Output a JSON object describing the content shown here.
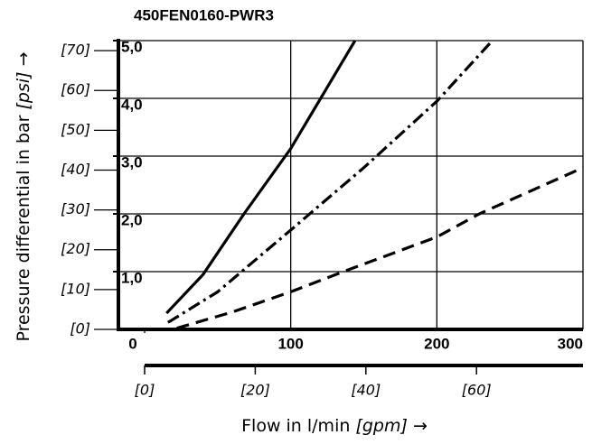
{
  "chart_data": {
    "type": "line",
    "title": "450FEN0160-PWR3",
    "x_label": {
      "text": "Flow in l/min",
      "unit": "[gpm]",
      "arrow": "→"
    },
    "y_label": {
      "text": "Pressure differential in bar",
      "unit": "[psi]",
      "arrow": "→"
    },
    "xlim": [
      0,
      300
    ],
    "xticks": [
      0,
      100,
      200,
      300
    ],
    "ylim": [
      0,
      5
    ],
    "yticks": [
      {
        "value": 1,
        "label": "1,0"
      },
      {
        "value": 2,
        "label": "2,0"
      },
      {
        "value": 3,
        "label": "3,0"
      },
      {
        "value": 4,
        "label": "4,0"
      },
      {
        "value": 5,
        "label": "5,0"
      }
    ],
    "y2lim": [
      0,
      72.52
    ],
    "y2ticks": [
      {
        "value": 0,
        "label": "[0]"
      },
      {
        "value": 10,
        "label": "[10]"
      },
      {
        "value": 20,
        "label": "[20]"
      },
      {
        "value": 30,
        "label": "[30]"
      },
      {
        "value": 40,
        "label": "[40]"
      },
      {
        "value": 50,
        "label": "[50]"
      },
      {
        "value": 60,
        "label": "[60]"
      },
      {
        "value": 70,
        "label": "[70]"
      }
    ],
    "x2lim": [
      0,
      79.25
    ],
    "x2ticks": [
      {
        "value": 0,
        "label": "[0]"
      },
      {
        "value": 20,
        "label": "[20]"
      },
      {
        "value": 40,
        "label": "[40]"
      },
      {
        "value": 60,
        "label": "[60]"
      }
    ],
    "grid": true,
    "series": [
      {
        "color": "#000000",
        "dash": "none",
        "x": [
          15,
          40,
          68,
          100,
          124,
          144
        ],
        "y": [
          0.28,
          0.95,
          2.0,
          3.13,
          4.15,
          5.0
        ]
      },
      {
        "color": "#000000",
        "dash": "14 5 3 5",
        "x": [
          16,
          50,
          100,
          150,
          200,
          238
        ],
        "y": [
          0.12,
          0.65,
          1.72,
          2.8,
          3.95,
          5.0
        ]
      },
      {
        "color": "#000000",
        "dash": "14 8",
        "x": [
          22,
          60,
          100,
          136,
          200,
          229,
          300
        ],
        "y": [
          0.02,
          0.3,
          0.65,
          1.0,
          1.6,
          2.0,
          2.8
        ]
      }
    ]
  }
}
